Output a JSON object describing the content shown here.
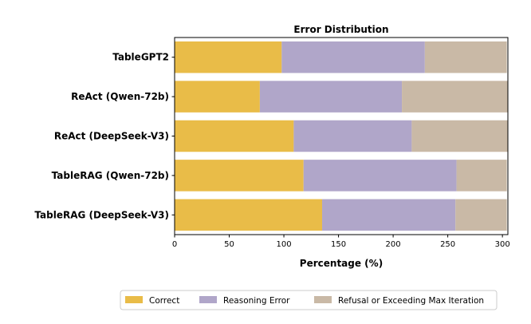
{
  "chart_data": {
    "type": "bar",
    "orientation": "horizontal",
    "stacked": true,
    "title": "Error Distribution",
    "xlabel": "Percentage (%)",
    "ylabel": "",
    "xlim": [
      0,
      305
    ],
    "xticks": [
      "0",
      "50",
      "100",
      "150",
      "200",
      "250",
      "300"
    ],
    "categories": [
      "TableGPT2",
      "ReAct (Qwen-72b)",
      "ReAct (DeepSeek-V3)",
      "TableRAG (Qwen-72b)",
      "TableRAG (DeepSeek-V3)"
    ],
    "series": [
      {
        "name": "Correct",
        "color": "#e9bc48",
        "values": [
          98,
          78,
          109,
          118,
          135
        ]
      },
      {
        "name": "Reasoning Error",
        "color": "#b0a6c9",
        "values": [
          131,
          130,
          108,
          140,
          122
        ]
      },
      {
        "name": "Refusal or Exceeding Max Iteration",
        "color": "#c9b9a6",
        "values": [
          75,
          97,
          88,
          46,
          47
        ]
      }
    ],
    "grid": false,
    "legend_position": "bottom-right"
  }
}
